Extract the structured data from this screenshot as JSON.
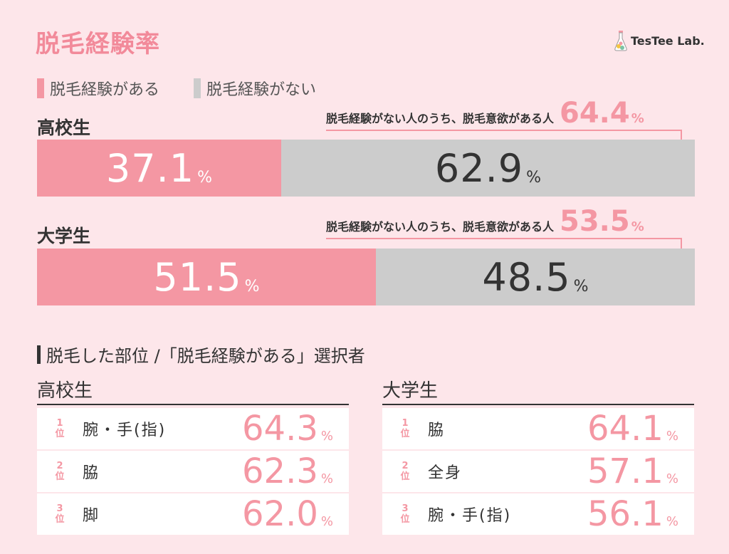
{
  "title": "脱毛経験率",
  "brand": "TesTee Lab.",
  "colors": {
    "yes": "#f497a3",
    "no": "#cccccc",
    "title": "#f28a9a"
  },
  "legend": {
    "yes": "脱毛経験がある",
    "no": "脱毛経験がない"
  },
  "note_label": "脱毛経験がない人のうち、脱毛意欲がある人",
  "pct": "%",
  "chart_data": {
    "type": "bar",
    "stacked": true,
    "orientation": "horizontal",
    "categories": [
      "高校生",
      "大学生"
    ],
    "series": [
      {
        "name": "脱毛経験がある",
        "values": [
          37.1,
          51.5
        ]
      },
      {
        "name": "脱毛経験がない",
        "values": [
          62.9,
          48.5
        ]
      }
    ],
    "annotations": [
      {
        "category": "高校生",
        "label": "脱毛経験がない人のうち、脱毛意欲がある人",
        "value": 64.4
      },
      {
        "category": "大学生",
        "label": "脱毛経験がない人のうち、脱毛意欲がある人",
        "value": 53.5
      }
    ]
  },
  "groups": [
    {
      "label": "高校生",
      "yes": "37.1",
      "no": "62.9",
      "yes_num": 37.1,
      "note_value": "64.4"
    },
    {
      "label": "大学生",
      "yes": "51.5",
      "no": "48.5",
      "yes_num": 51.5,
      "note_value": "53.5"
    }
  ],
  "ranking": {
    "title": "脱毛した部位 /「脱毛経験がある」選択者",
    "rank_suffix": "位",
    "columns": [
      {
        "label": "高校生",
        "rows": [
          {
            "rank": "1",
            "part": "腕・手(指)",
            "value": "64.3"
          },
          {
            "rank": "2",
            "part": "脇",
            "value": "62.3"
          },
          {
            "rank": "3",
            "part": "脚",
            "value": "62.0"
          }
        ]
      },
      {
        "label": "大学生",
        "rows": [
          {
            "rank": "1",
            "part": "脇",
            "value": "64.1"
          },
          {
            "rank": "2",
            "part": "全身",
            "value": "57.1"
          },
          {
            "rank": "3",
            "part": "腕・手(指)",
            "value": "56.1"
          }
        ]
      }
    ]
  }
}
